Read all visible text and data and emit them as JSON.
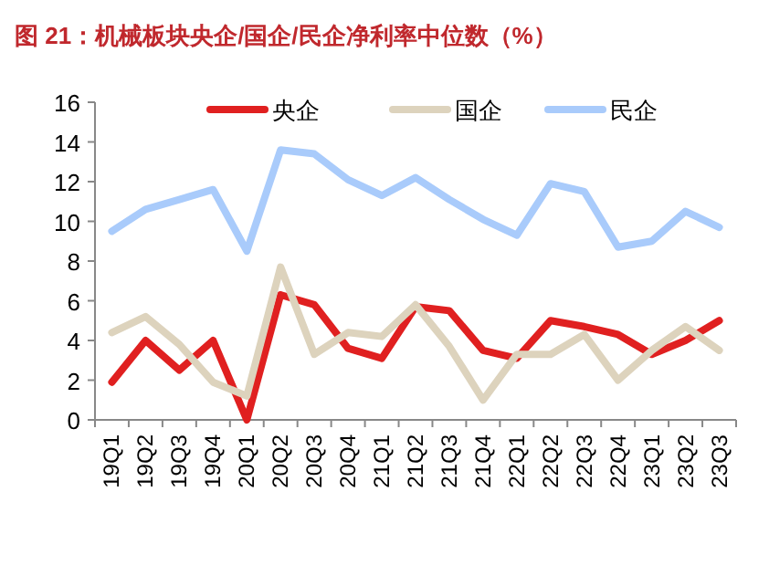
{
  "chart_data": {
    "type": "line",
    "title": "图 21：机械板块央企/国企/民企净利率中位数（%）",
    "categories": [
      "19Q1",
      "19Q2",
      "19Q3",
      "19Q4",
      "20Q1",
      "20Q2",
      "20Q3",
      "20Q4",
      "21Q1",
      "21Q2",
      "21Q3",
      "21Q4",
      "22Q1",
      "22Q2",
      "22Q3",
      "22Q4",
      "23Q1",
      "23Q2",
      "23Q3"
    ],
    "series": [
      {
        "name": "央企",
        "color": "#e02020",
        "values": [
          1.9,
          4.0,
          2.5,
          4.0,
          0,
          6.3,
          5.8,
          3.6,
          3.1,
          5.7,
          5.5,
          3.5,
          3.1,
          5.0,
          4.7,
          4.3,
          3.3,
          4.0,
          5.0
        ]
      },
      {
        "name": "国企",
        "color": "#ddd3bd",
        "values": [
          4.4,
          5.2,
          3.8,
          1.9,
          1.2,
          7.7,
          3.3,
          4.4,
          4.2,
          5.8,
          3.7,
          1.0,
          3.3,
          3.3,
          4.3,
          2.0,
          3.5,
          4.7,
          3.5
        ]
      },
      {
        "name": "民企",
        "color": "#a9cbfb",
        "values": [
          9.5,
          10.6,
          11.1,
          11.6,
          8.5,
          13.6,
          13.4,
          12.1,
          11.3,
          12.2,
          11.1,
          10.1,
          9.3,
          11.9,
          11.5,
          8.7,
          9.0,
          10.5,
          9.7
        ]
      }
    ],
    "ylim": [
      0,
      16
    ],
    "yticks": [
      0,
      2,
      4,
      6,
      8,
      10,
      12,
      14,
      16
    ],
    "grid": false,
    "legend": "top",
    "marker": "none",
    "line_style": "solid"
  }
}
